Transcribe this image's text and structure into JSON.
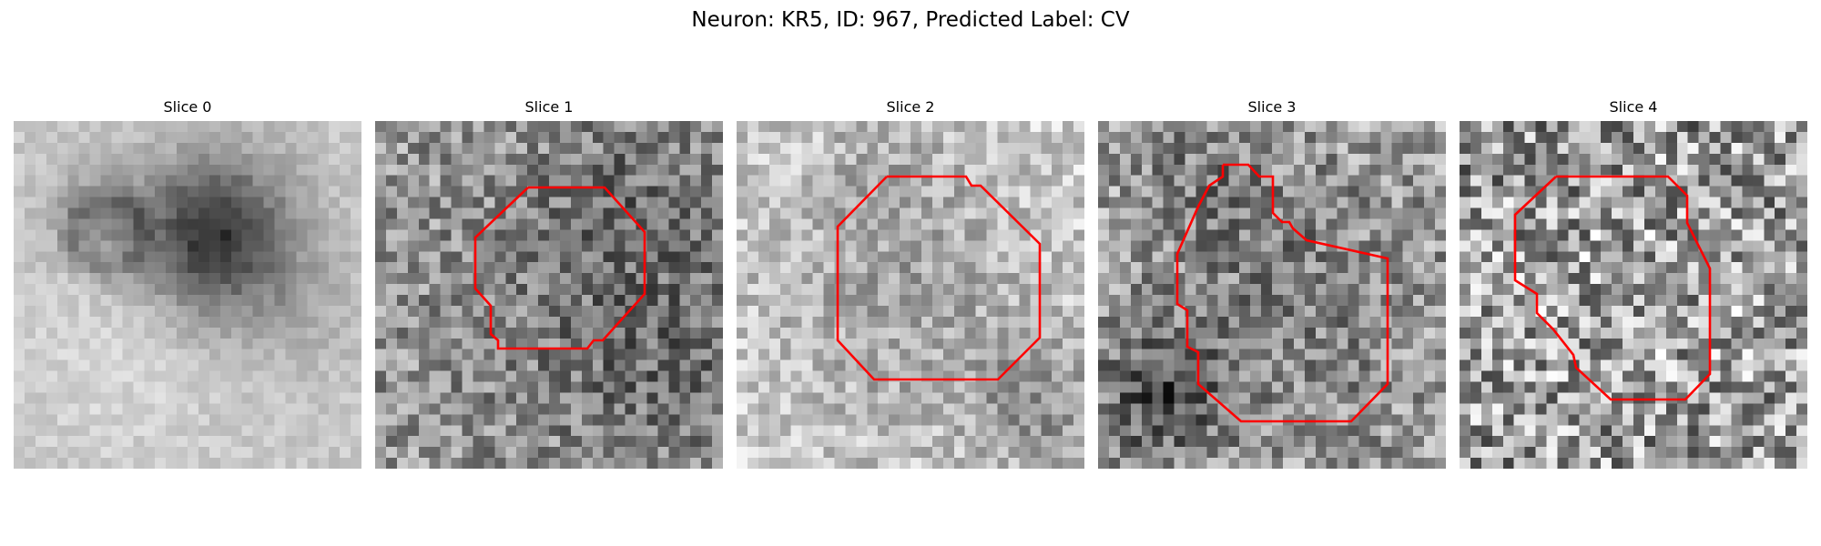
{
  "figure": {
    "title": "Neuron: KR5, ID: 967, Predicted Label: CV"
  },
  "panels": [
    {
      "title": "Slice 0",
      "has_contour": false,
      "texture": "blurred"
    },
    {
      "title": "Slice 1",
      "has_contour": true,
      "texture": "noisy"
    },
    {
      "title": "Slice 2",
      "has_contour": true,
      "texture": "light-noisy"
    },
    {
      "title": "Slice 3",
      "has_contour": true,
      "texture": "noisy"
    },
    {
      "title": "Slice 4",
      "has_contour": true,
      "texture": "very-noisy"
    }
  ],
  "colors": {
    "contour": "#ff0000",
    "background": "#ffffff",
    "colormap": "gray"
  }
}
